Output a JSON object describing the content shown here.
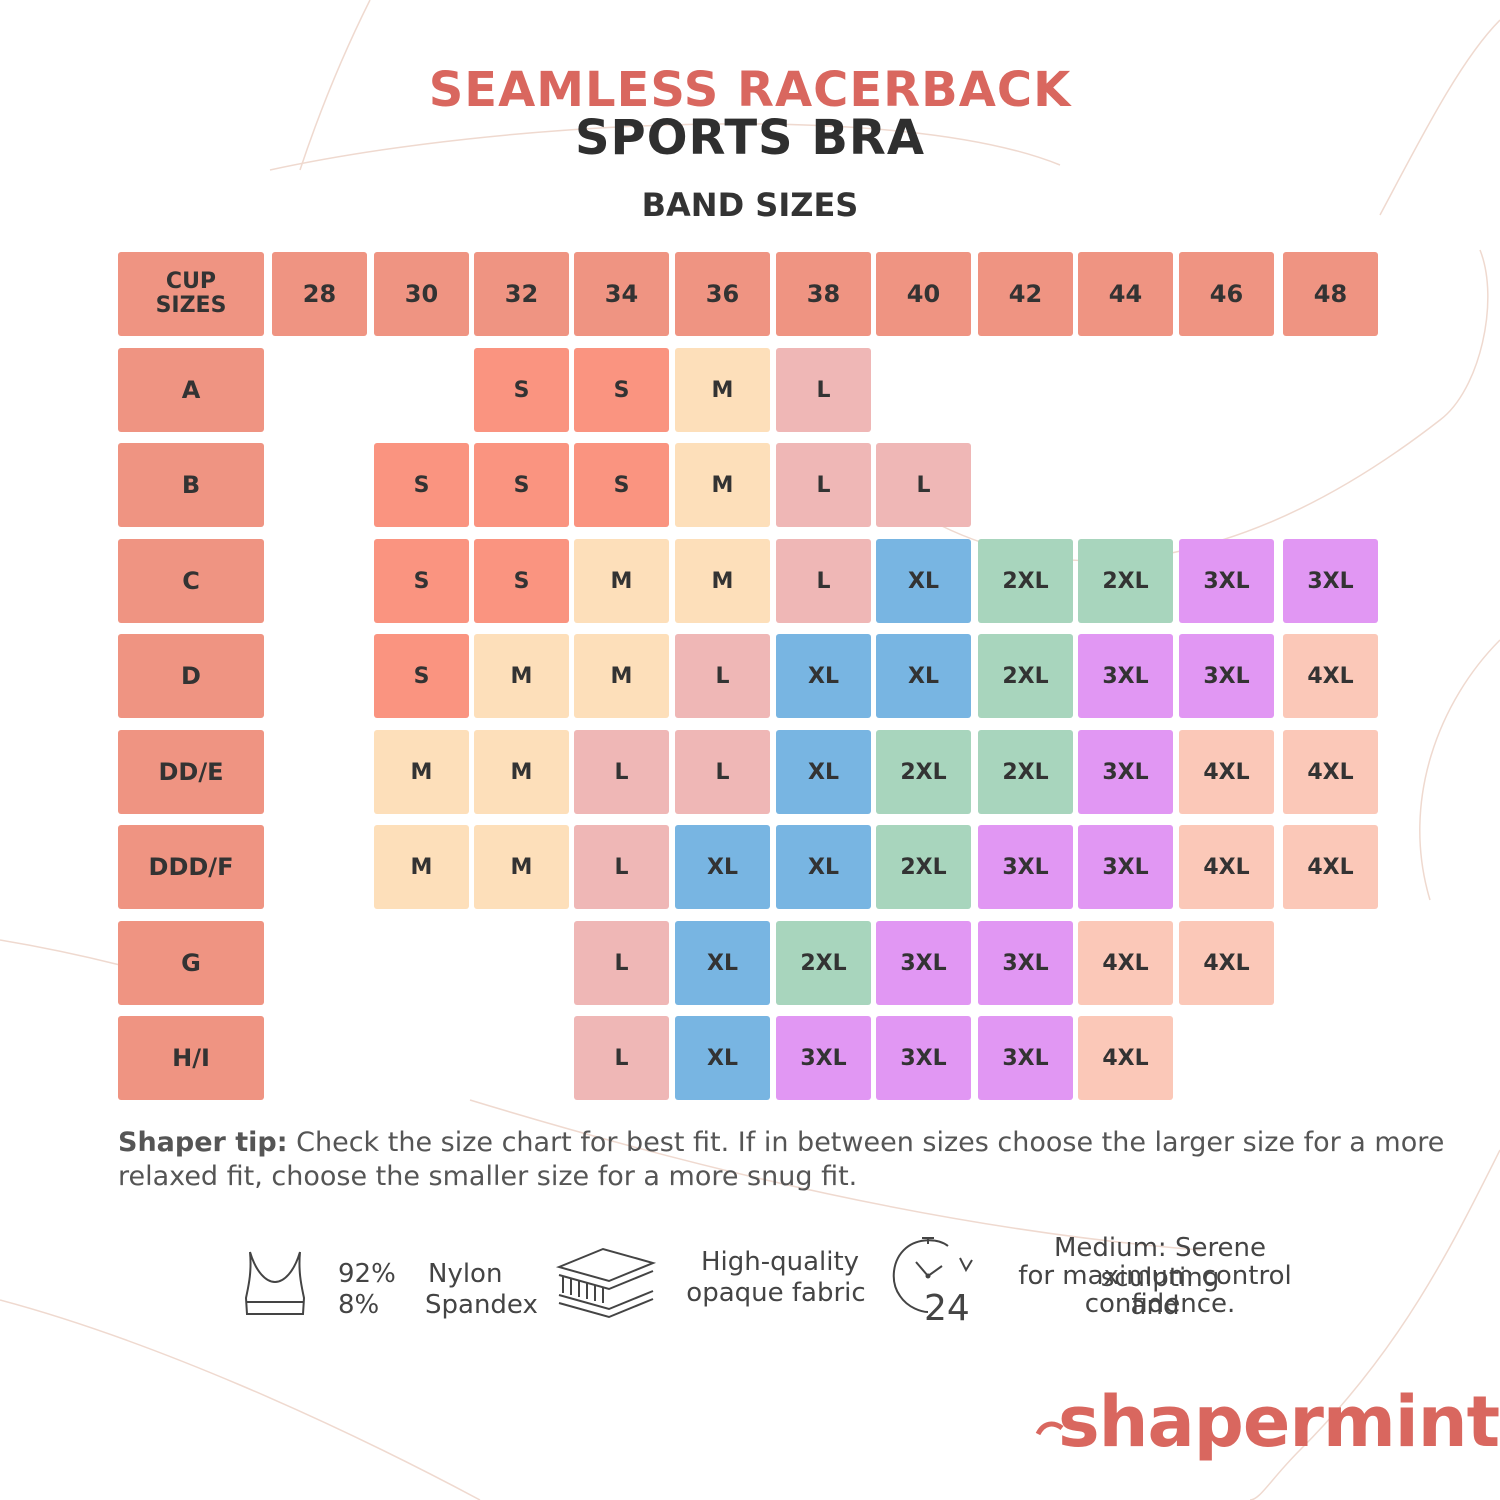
{
  "title": {
    "line1": "SEAMLESS RACERBACK",
    "line2": "SPORTS BRA",
    "line1_color": "#d9675f",
    "line2_color": "#2f2f2f"
  },
  "band_heading": "BAND SIZES",
  "table": {
    "corner_label": "CUP\nSIZES",
    "bands": [
      "28",
      "30",
      "32",
      "34",
      "36",
      "38",
      "40",
      "42",
      "44",
      "46",
      "48"
    ],
    "rows": [
      {
        "cup": "A",
        "sizes": [
          "",
          "",
          "S",
          "S",
          "M",
          "L",
          "",
          "",
          "",
          "",
          ""
        ]
      },
      {
        "cup": "B",
        "sizes": [
          "",
          "S",
          "S",
          "S",
          "M",
          "L",
          "L",
          "",
          "",
          "",
          ""
        ]
      },
      {
        "cup": "C",
        "sizes": [
          "",
          "S",
          "S",
          "M",
          "M",
          "L",
          "XL",
          "2XL",
          "2XL",
          "3XL",
          "3XL"
        ]
      },
      {
        "cup": "D",
        "sizes": [
          "",
          "S",
          "M",
          "M",
          "L",
          "XL",
          "XL",
          "2XL",
          "3XL",
          "3XL",
          "4XL"
        ]
      },
      {
        "cup": "DD/E",
        "sizes": [
          "",
          "M",
          "M",
          "L",
          "L",
          "XL",
          "2XL",
          "2XL",
          "3XL",
          "4XL",
          "4XL"
        ]
      },
      {
        "cup": "DDD/F",
        "sizes": [
          "",
          "M",
          "M",
          "L",
          "XL",
          "XL",
          "2XL",
          "3XL",
          "3XL",
          "4XL",
          "4XL"
        ]
      },
      {
        "cup": "G",
        "sizes": [
          "",
          "",
          "",
          "L",
          "XL",
          "2XL",
          "3XL",
          "3XL",
          "4XL",
          "4XL",
          ""
        ]
      },
      {
        "cup": "H/I",
        "sizes": [
          "",
          "",
          "",
          "L",
          "XL",
          "3XL",
          "3XL",
          "3XL",
          "4XL",
          "",
          ""
        ]
      }
    ],
    "colors": {
      "header": "#ef9482",
      "S": "#fa9480",
      "M": "#fddfba",
      "L": "#efb7b6",
      "XL": "#78b5e2",
      "2XL": "#a8d5bd",
      "3XL": "#e197f3",
      "4XL": "#fbc8b8"
    }
  },
  "tip": {
    "label": "Shaper tip:",
    "text": " Check the size chart for best fit. If in between sizes choose the larger size for a more relaxed fit, choose the smaller size for a more snug fit."
  },
  "features": {
    "composition_percent_1": "92%",
    "composition_percent_2": "8%",
    "composition_material_1": "Nylon",
    "composition_material_2": "Spandex",
    "fabric_line_1": "High-quality",
    "fabric_line_2": "opaque fabric",
    "compression_line_1": "Medium: Serene sculpting",
    "compression_line_2": "for maximum control and",
    "compression_line_3": "confidence.",
    "clock_label": "24",
    "icons": [
      "sports-bra-icon",
      "fabric-layers-icon",
      "clock-24-icon"
    ]
  },
  "brand": {
    "name": "shapermint",
    "color": "#d9675f"
  }
}
